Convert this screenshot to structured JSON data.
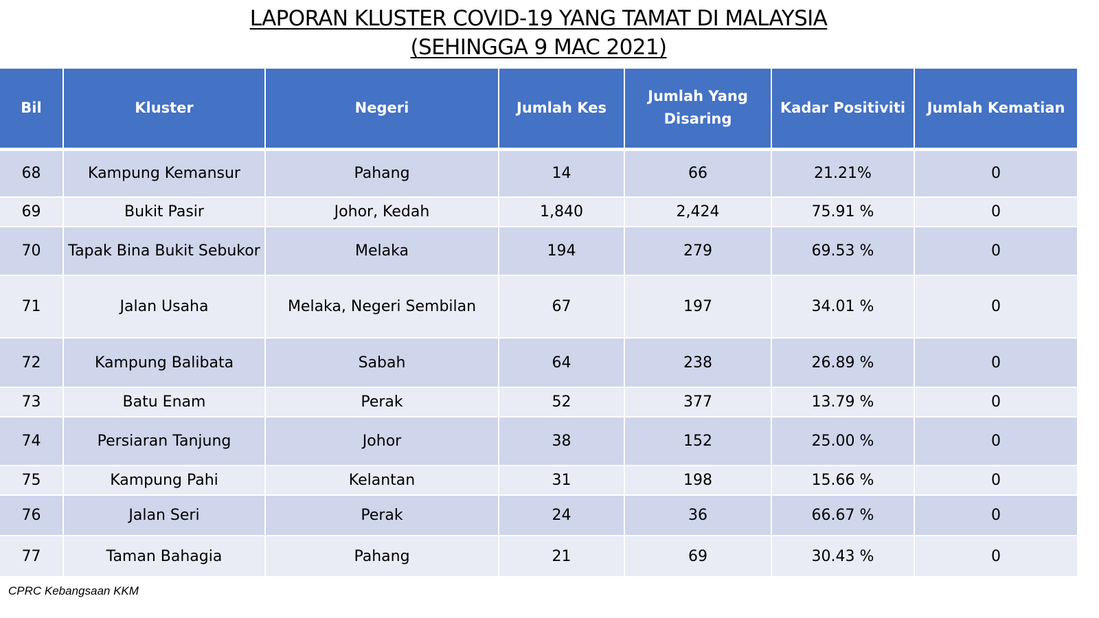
{
  "title": {
    "line1": "LAPORAN KLUSTER COVID-19 YANG TAMAT DI MALAYSIA",
    "line2": "(SEHINGGA  9 MAC 2021)"
  },
  "table": {
    "headers": [
      "Bil",
      "Kluster",
      "Negeri",
      "Jumlah Kes",
      "Jumlah Yang Disaring",
      "Kadar Positiviti",
      "Jumlah Kematian"
    ],
    "rows": [
      [
        "68",
        "Kampung Kemansur",
        "Pahang",
        "14",
        "66",
        "21.21%",
        "0"
      ],
      [
        "69",
        "Bukit Pasir",
        "Johor, Kedah",
        "1,840",
        "2,424",
        "75.91 %",
        "0"
      ],
      [
        "70",
        "Tapak Bina Bukit Sebukor",
        "Melaka",
        "194",
        "279",
        "69.53 %",
        "0"
      ],
      [
        "71",
        "Jalan Usaha",
        "Melaka, Negeri Sembilan",
        "67",
        "197",
        "34.01 %",
        "0"
      ],
      [
        "72",
        "Kampung Balibata",
        "Sabah",
        "64",
        "238",
        "26.89 %",
        "0"
      ],
      [
        "73",
        "Batu Enam",
        "Perak",
        "52",
        "377",
        "13.79 %",
        "0"
      ],
      [
        "74",
        "Persiaran Tanjung",
        "Johor",
        "38",
        "152",
        "25.00 %",
        "0"
      ],
      [
        "75",
        "Kampung Pahi",
        "Kelantan",
        "31",
        "198",
        "15.66 %",
        "0"
      ],
      [
        "76",
        "Jalan Seri",
        "Perak",
        "24",
        "36",
        "66.67 %",
        "0"
      ],
      [
        "77",
        "Taman Bahagia",
        "Pahang",
        "21",
        "69",
        "30.43 %",
        "0"
      ]
    ]
  },
  "footer": {
    "source": "CPRC Kebangsaan KKM"
  },
  "colors": {
    "header_bg": "#4472c4",
    "row_dark": "#cfd5ea",
    "row_light": "#e9ebf5"
  }
}
